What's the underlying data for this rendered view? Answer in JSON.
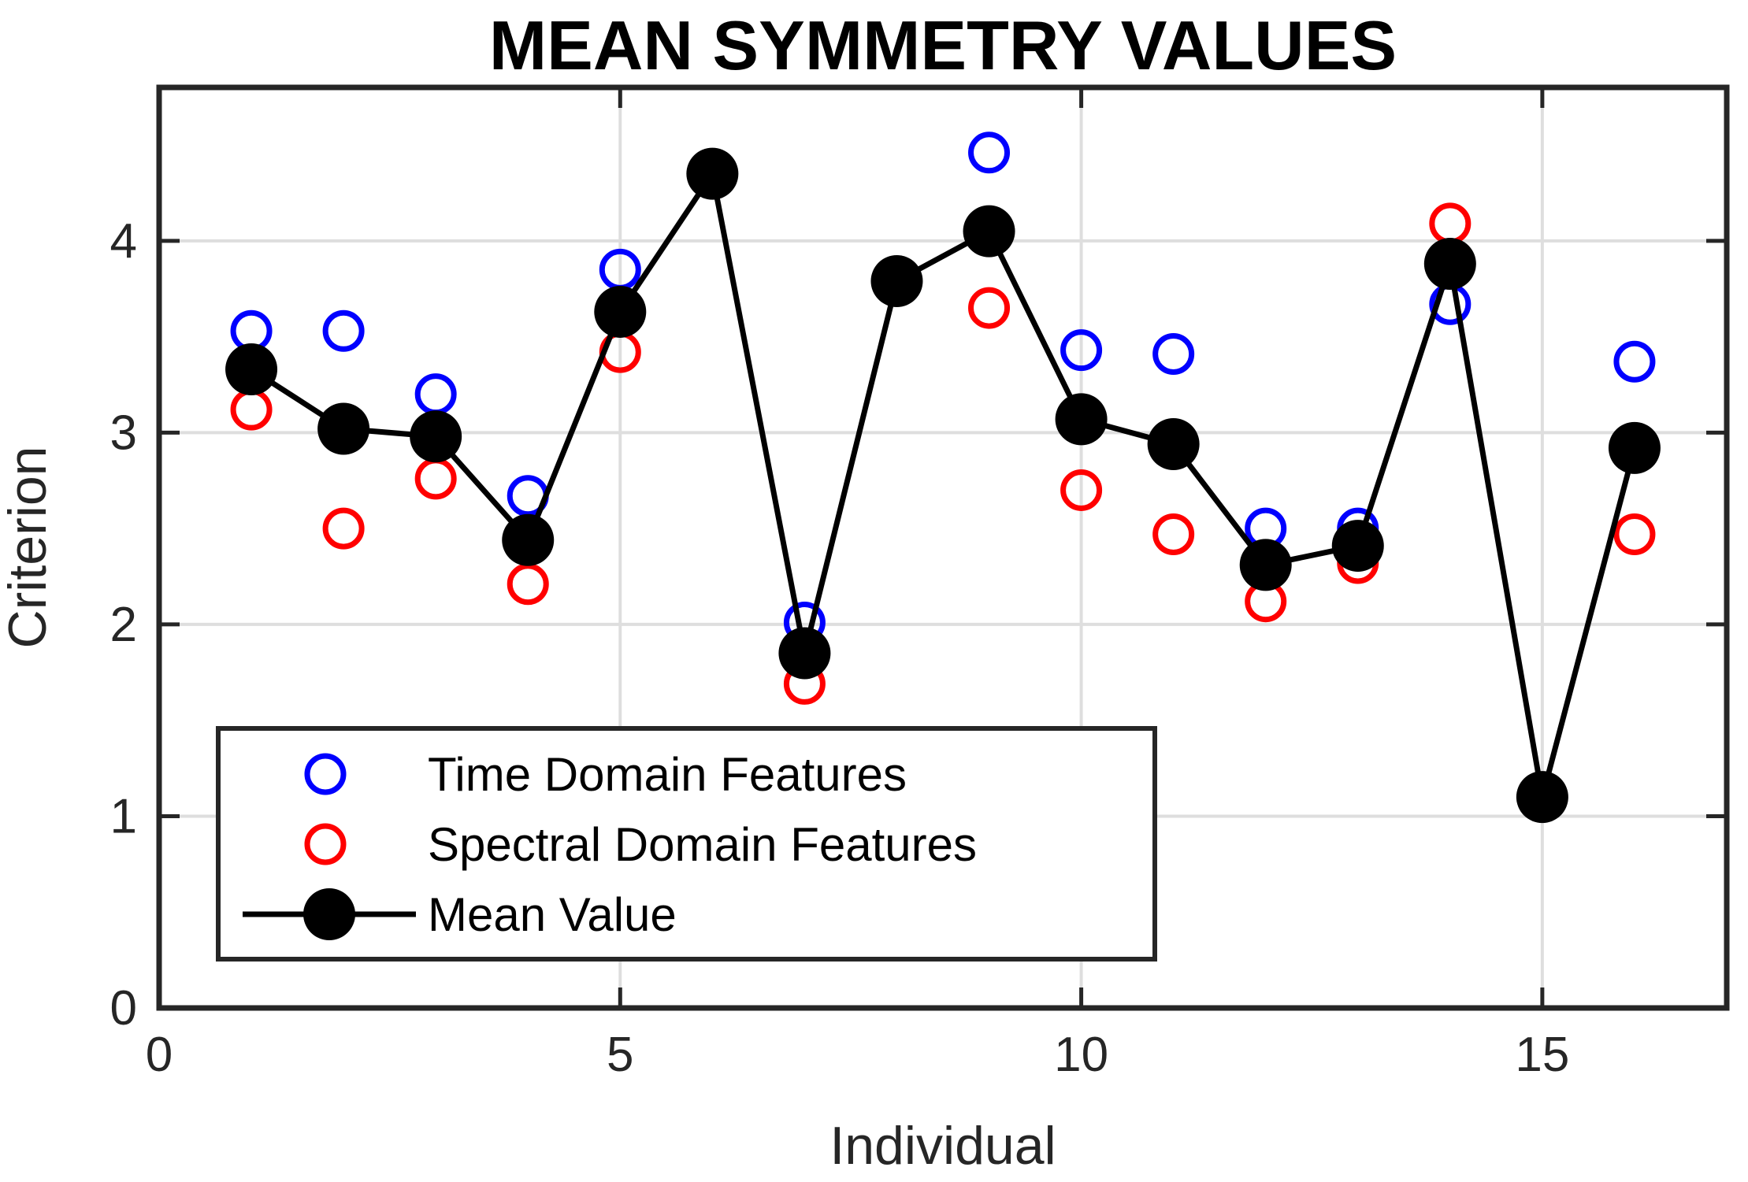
{
  "title": "MEAN SYMMETRY VALUES",
  "colors": {
    "time_domain": "#0000ff",
    "spectral_domain": "#ff0000",
    "mean_value": "#000000",
    "grid": "#dedede",
    "axis": "#262626",
    "background": "#ffffff"
  },
  "chart_data": {
    "type": "scatter",
    "title": "MEAN SYMMETRY VALUES",
    "xlabel": "Individual",
    "ylabel": "Criterion",
    "xlim": [
      0,
      17
    ],
    "ylim": [
      0,
      4.8
    ],
    "x_ticks": [
      0,
      5,
      10,
      15
    ],
    "y_ticks": [
      0,
      1,
      2,
      3,
      4
    ],
    "grid": true,
    "legend_position": "south-west",
    "x": [
      1,
      2,
      3,
      4,
      5,
      6,
      7,
      8,
      9,
      10,
      11,
      12,
      13,
      14,
      15,
      16
    ],
    "series": [
      {
        "name": "Time Domain Features",
        "color": "#0000ff",
        "marker": "open-circle",
        "line": false,
        "values": [
          3.53,
          3.53,
          3.2,
          2.67,
          3.85,
          4.35,
          2.01,
          3.79,
          4.46,
          3.43,
          3.41,
          2.5,
          2.5,
          3.67,
          1.1,
          3.37
        ]
      },
      {
        "name": "Spectral Domain Features",
        "color": "#ff0000",
        "marker": "open-circle",
        "line": false,
        "values": [
          3.12,
          2.5,
          2.76,
          2.21,
          3.42,
          4.35,
          1.69,
          3.79,
          3.65,
          2.7,
          2.47,
          2.12,
          2.32,
          4.09,
          1.1,
          2.47
        ]
      },
      {
        "name": "Mean Value",
        "color": "#000000",
        "marker": "filled-circle",
        "line": true,
        "values": [
          3.33,
          3.02,
          2.98,
          2.44,
          3.63,
          4.35,
          1.85,
          3.79,
          4.05,
          3.07,
          2.94,
          2.31,
          2.41,
          3.88,
          1.1,
          2.92
        ]
      }
    ]
  }
}
